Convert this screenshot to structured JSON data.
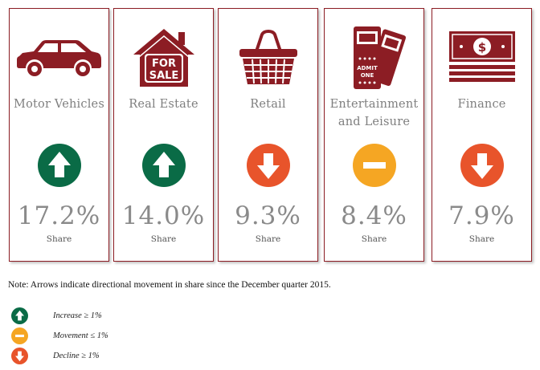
{
  "colors": {
    "border": "#8c1d24",
    "icon": "#8c1d24",
    "increase": "#0a6b46",
    "movement": "#f5a623",
    "decline": "#e8542b"
  },
  "cards": [
    {
      "label_lines": [
        "Motor Vehicles"
      ],
      "icon": "car-icon",
      "direction": "increase",
      "value": "17.2%",
      "sub": "Share"
    },
    {
      "label_lines": [
        "Real Estate"
      ],
      "icon": "for-sale-house-icon",
      "direction": "increase",
      "value": "14.0%",
      "sub": "Share",
      "icon_text_1": "FOR",
      "icon_text_2": "SALE"
    },
    {
      "label_lines": [
        "Retail"
      ],
      "icon": "shopping-basket-icon",
      "direction": "decline",
      "value": "9.3%",
      "sub": "Share"
    },
    {
      "label_lines": [
        "Entertainment",
        "and Leisure"
      ],
      "icon": "admit-one-tickets-icon",
      "direction": "movement",
      "value": "8.4%",
      "sub": "Share",
      "icon_text_1": "ADMIT",
      "icon_text_2": "ONE"
    },
    {
      "label_lines": [
        "Finance"
      ],
      "icon": "money-stack-icon",
      "direction": "decline",
      "value": "7.9%",
      "sub": "Share"
    }
  ],
  "note": "Note: Arrows indicate directional movement in share since the December quarter 2015.",
  "legend": [
    {
      "direction": "increase",
      "label": "Increase ≥ 1%"
    },
    {
      "direction": "movement",
      "label": "Movement ≤ 1%"
    },
    {
      "direction": "decline",
      "label": "Decline  ≥ 1%"
    }
  ]
}
